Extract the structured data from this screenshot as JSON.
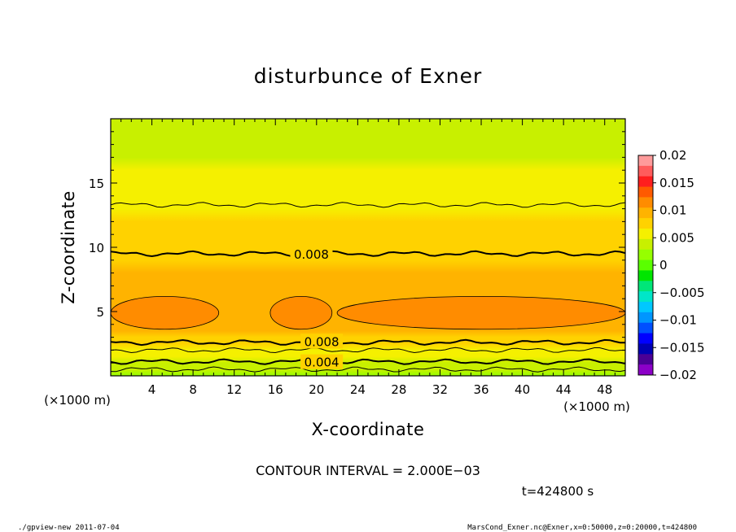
{
  "chart_data": {
    "type": "heatmap",
    "title": "disturbunce of Exner",
    "xlabel": "X-coordinate",
    "ylabel": "Z-coordinate",
    "x_unit": "(×1000 m)",
    "y_unit": "(×1000 m)",
    "xlim": [
      0,
      50
    ],
    "ylim": [
      0,
      20
    ],
    "x_ticks": [
      4,
      8,
      12,
      16,
      20,
      24,
      28,
      32,
      36,
      40,
      44,
      48
    ],
    "y_ticks": [
      5,
      10,
      15
    ],
    "colorbar": {
      "min": -0.02,
      "max": 0.02,
      "tick_labels": [
        "0.02",
        "0.015",
        "0.01",
        "0.005",
        "0",
        "−0.005",
        "−0.01",
        "−0.015",
        "−0.02"
      ],
      "colors": [
        "#ff9b9b",
        "#ff5c5c",
        "#ff1e1e",
        "#ff5a00",
        "#ff8c00",
        "#ffb300",
        "#ffd200",
        "#f5f000",
        "#c8f000",
        "#96ff00",
        "#5aff00",
        "#00e600",
        "#00e678",
        "#00e6c8",
        "#00c8ff",
        "#0096ff",
        "#0050ff",
        "#0000ff",
        "#0000b4",
        "#4b0096",
        "#8c00c8"
      ]
    },
    "vertical_profile": {
      "z": [
        0,
        0.5,
        1,
        1.5,
        2,
        2.5,
        3,
        3.5,
        4,
        5,
        6,
        7,
        8,
        9,
        10,
        11,
        12,
        13,
        14,
        15,
        16,
        17,
        18,
        19,
        20
      ],
      "value": [
        0.0025,
        0.0035,
        0.0045,
        0.0055,
        0.0065,
        0.0075,
        0.0082,
        0.009,
        0.0096,
        0.0104,
        0.0099,
        0.0093,
        0.0089,
        0.0084,
        0.0079,
        0.0074,
        0.0069,
        0.0064,
        0.0058,
        0.0054,
        0.005,
        0.0047,
        0.0045,
        0.0043,
        0.0042
      ]
    },
    "contour_labels": [
      {
        "text": "0.008",
        "x": 19.5,
        "z": 9.5
      },
      {
        "text": "0.008",
        "x": 20.5,
        "z": 2.7
      },
      {
        "text": "0.004",
        "x": 20.5,
        "z": 1.1
      }
    ],
    "contour_interval_text": "CONTOUR INTERVAL = 2.000E−03",
    "time_text": "t=424800 s"
  },
  "footer": {
    "left": "./gpview-new   2011-07-04",
    "right": "MarsCond_Exner.nc@Exner,x=0:50000,z=0:20000,t=424800"
  }
}
